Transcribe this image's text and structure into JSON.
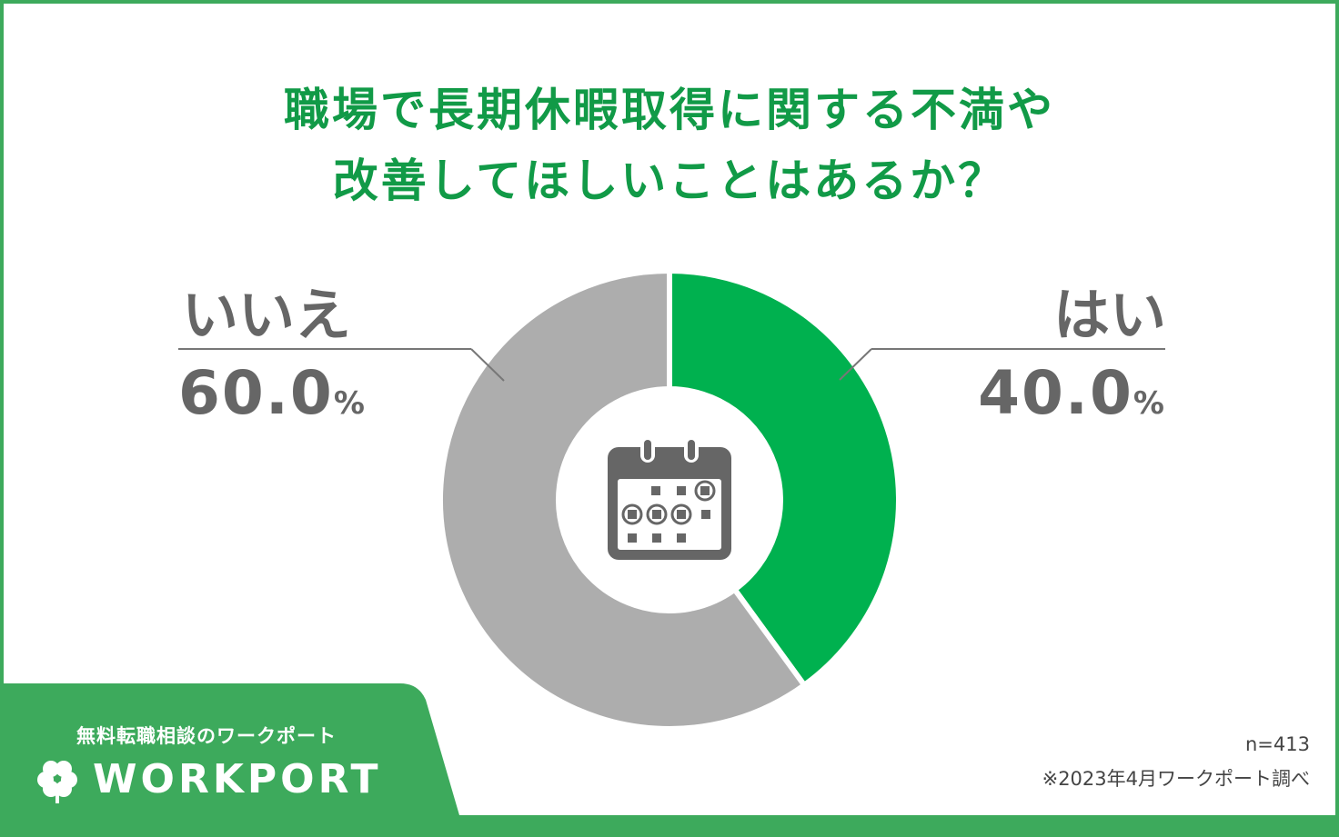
{
  "title_lines": [
    "職場で長期休暇取得に関する不満や",
    "改善してほしいことはあるか？"
  ],
  "chart_data": {
    "type": "pie",
    "title": "職場で長期休暇取得に関する不満や改善してほしいことはあるか？",
    "categories": [
      "はい",
      "いいえ"
    ],
    "values": [
      40.0,
      60.0
    ],
    "value_labels": [
      "40.0",
      "60.0"
    ],
    "unit": "%",
    "colors": [
      "#00b14f",
      "#adadad"
    ],
    "style": "donut",
    "center_icon": "calendar-icon"
  },
  "labels": {
    "yes": {
      "name": "はい",
      "value": "40.0",
      "unit": "%"
    },
    "no": {
      "name": "いいえ",
      "value": "60.0",
      "unit": "%"
    }
  },
  "footer": {
    "sample": "n=413",
    "source": "※2023年4月ワークポート調べ"
  },
  "brand": {
    "tagline": "無料転職相談のワークポート",
    "logo_text": "WORKPORT",
    "logo_icon": "clover-icon",
    "color": "#3daa5c"
  }
}
